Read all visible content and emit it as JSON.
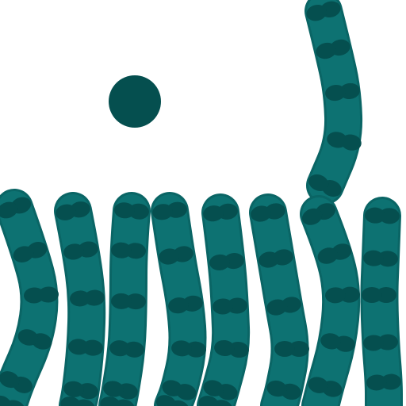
{
  "game": {
    "background_color": "#ffffff",
    "colors": {
      "worm_body": "#0d7272",
      "worm_outline": "#0a6565",
      "worm_segment": "#054f4f",
      "ball": "#054f4f"
    },
    "pieces": [
      {
        "kind": "ball",
        "icon": "dark-teal-ball"
      },
      {
        "kind": "worm",
        "icon": "segmented-worm",
        "segments": 6
      },
      {
        "kind": "worm",
        "icon": "segmented-worm",
        "segments": 6
      },
      {
        "kind": "worm",
        "icon": "segmented-worm",
        "segments": 6
      },
      {
        "kind": "worm",
        "icon": "segmented-worm",
        "segments": 6
      },
      {
        "kind": "worm",
        "icon": "segmented-worm",
        "segments": 6
      },
      {
        "kind": "worm",
        "icon": "segmented-worm",
        "segments": 5
      },
      {
        "kind": "worm",
        "icon": "segmented-worm",
        "segments": 5
      },
      {
        "kind": "worm",
        "icon": "segmented-worm",
        "segments": 5
      },
      {
        "kind": "worm",
        "icon": "segmented-worm",
        "segments": 5
      }
    ]
  }
}
